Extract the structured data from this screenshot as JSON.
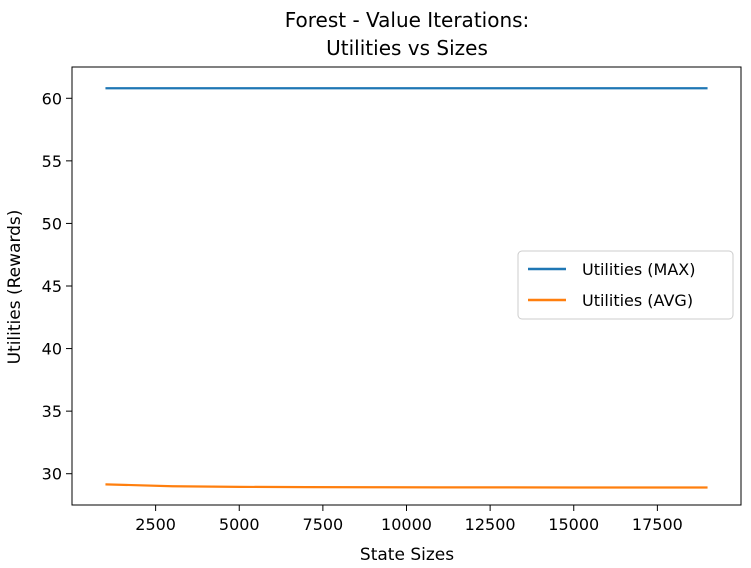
{
  "chart_data": {
    "type": "line",
    "title_lines": [
      "Forest - Value Iterations:",
      "Utilities vs Sizes"
    ],
    "xlabel": "State Sizes",
    "ylabel": "Utilities (Rewards)",
    "xlim": [
      0,
      20000
    ],
    "ylim": [
      27.5,
      62.5
    ],
    "xticks": [
      2500,
      5000,
      7500,
      10000,
      12500,
      15000,
      17500
    ],
    "yticks": [
      30,
      35,
      40,
      45,
      50,
      55,
      60
    ],
    "x": [
      1000,
      3000,
      5000,
      7000,
      9000,
      11000,
      13000,
      15000,
      17000,
      19000
    ],
    "series": [
      {
        "name": "Utilities (MAX)",
        "color": "#1f77b4",
        "values": [
          60.8,
          60.8,
          60.8,
          60.8,
          60.8,
          60.8,
          60.8,
          60.8,
          60.8,
          60.8
        ]
      },
      {
        "name": "Utilities (AVG)",
        "color": "#ff7f0e",
        "values": [
          29.15,
          29.0,
          28.95,
          28.93,
          28.92,
          28.91,
          28.91,
          28.9,
          28.9,
          28.9
        ]
      }
    ],
    "legend": "center-right",
    "grid": false
  }
}
